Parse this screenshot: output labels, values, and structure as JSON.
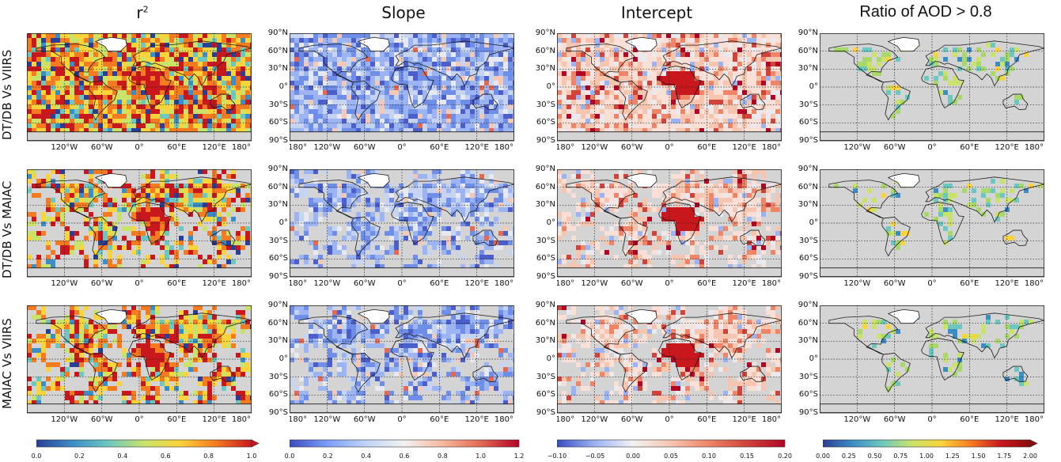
{
  "columns": [
    {
      "key": "r2",
      "title_main": "r",
      "title_sup": "2"
    },
    {
      "key": "slope",
      "title_main": "Slope"
    },
    {
      "key": "intercept",
      "title_main": "Intercept"
    },
    {
      "key": "ratio",
      "title_main": "Ratio of AOD > 0.8"
    }
  ],
  "rows": [
    {
      "label": "DT/DB Vs VIIRS"
    },
    {
      "label": "DT/DB Vs MAIAC"
    },
    {
      "label": "MAIAC Vs VIIRS"
    }
  ],
  "axes": {
    "lon_ticks": [
      "120°W",
      "60°W",
      "0°",
      "60°E",
      "120°E",
      "180°"
    ],
    "lon_ticks_full": [
      "180°",
      "120°W",
      "60°W",
      "0°",
      "60°E",
      "120°E",
      "180°"
    ],
    "lat_ticks": [
      "90°N",
      "60°N",
      "30°N",
      "0°",
      "30°S",
      "60°S",
      "90°S"
    ]
  },
  "colorbars": [
    {
      "key": "r2",
      "ticks": [
        "0.0",
        "0.2",
        "0.4",
        "0.6",
        "0.8",
        "1.0"
      ],
      "colors": [
        "#2b3f97",
        "#3b8dc4",
        "#6cc7c0",
        "#c9e36a",
        "#fbd33b",
        "#f57b20",
        "#c8181e"
      ],
      "extend": "max"
    },
    {
      "key": "slope",
      "ticks": [
        "0.0",
        "0.2",
        "0.4",
        "0.6",
        "0.8",
        "1.0",
        "1.2"
      ],
      "colors": [
        "#3b4cc0",
        "#7b9ff9",
        "#c0d4f5",
        "#f2f2f2",
        "#f6b89d",
        "#e26952",
        "#b40426"
      ],
      "extend": "none"
    },
    {
      "key": "intercept",
      "ticks": [
        "−0.10",
        "−0.05",
        "0.00",
        "0.05",
        "0.10",
        "0.15",
        "0.20"
      ],
      "colors": [
        "#3b4cc0",
        "#9bb3f2",
        "#f2f2f2",
        "#f6c5b0",
        "#ee8468",
        "#d0433a",
        "#b40426"
      ],
      "extend": "none"
    },
    {
      "key": "ratio",
      "ticks": [
        "0.00",
        "0.25",
        "0.50",
        "0.75",
        "1.00",
        "1.25",
        "1.50",
        "1.75",
        "2.00"
      ],
      "colors": [
        "#2b3f97",
        "#3b8dc4",
        "#6cc7c0",
        "#c9e36a",
        "#fbd33b",
        "#f57b20",
        "#c8181e",
        "#8b0a0a"
      ],
      "extend": "max"
    }
  ],
  "style": {
    "land_grey": "#d4d4d4",
    "gridline": "#222222",
    "coast": "#1a1a1a"
  }
}
